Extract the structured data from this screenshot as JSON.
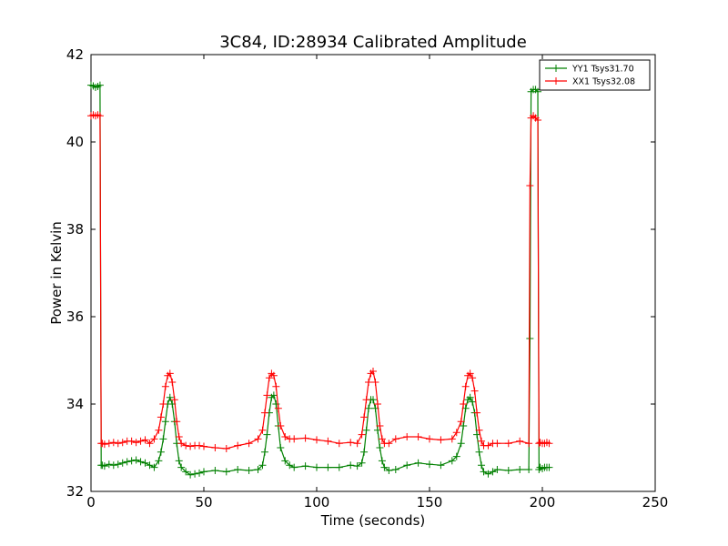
{
  "chart_data": {
    "type": "line",
    "title": "3C84, ID:28934 Calibrated Amplitude",
    "xlabel": "Time (seconds)",
    "ylabel": "Power in Kelvin",
    "xlim": [
      0,
      250
    ],
    "ylim": [
      32,
      42
    ],
    "xticks": [
      0,
      50,
      100,
      150,
      200,
      250
    ],
    "yticks": [
      32,
      34,
      36,
      38,
      40,
      42
    ],
    "grid": false,
    "legend_position": "top-right",
    "marker": "+",
    "series": [
      {
        "name": "YY1 Tsys31.70",
        "color": "#008000",
        "x": [
          0,
          1,
          2,
          3,
          4,
          4.5,
          5,
          6,
          8,
          10,
          12,
          14,
          16,
          18,
          20,
          22,
          24,
          26,
          28,
          30,
          31,
          32,
          33,
          34,
          35,
          36,
          37,
          38,
          39,
          40,
          42,
          44,
          46,
          48,
          50,
          55,
          60,
          65,
          70,
          74,
          76,
          77,
          78,
          79,
          80,
          81,
          82,
          83,
          84,
          86,
          88,
          90,
          95,
          100,
          105,
          110,
          115,
          118,
          120,
          121,
          122,
          123,
          124,
          125,
          126,
          127,
          128,
          129,
          130,
          132,
          135,
          140,
          145,
          150,
          155,
          160,
          162,
          164,
          165,
          166,
          167,
          168,
          169,
          170,
          171,
          172,
          173,
          174,
          176,
          178,
          180,
          185,
          190,
          194,
          194.5,
          195,
          196,
          197,
          198,
          198.5,
          199,
          200,
          201,
          202,
          203
        ],
        "y": [
          41.3,
          41.28,
          41.25,
          41.27,
          41.3,
          32.6,
          32.6,
          32.58,
          32.62,
          32.6,
          32.62,
          32.65,
          32.68,
          32.7,
          32.72,
          32.68,
          32.65,
          32.6,
          32.55,
          32.7,
          32.9,
          33.2,
          33.6,
          34.0,
          34.15,
          34.0,
          33.6,
          33.1,
          32.7,
          32.55,
          32.45,
          32.38,
          32.4,
          32.42,
          32.45,
          32.48,
          32.45,
          32.5,
          32.48,
          32.5,
          32.6,
          32.9,
          33.3,
          33.8,
          34.15,
          34.2,
          34.0,
          33.5,
          33.0,
          32.7,
          32.6,
          32.55,
          32.58,
          32.55,
          32.55,
          32.55,
          32.6,
          32.58,
          32.65,
          32.9,
          33.4,
          33.9,
          34.1,
          34.1,
          33.9,
          33.4,
          33.0,
          32.7,
          32.55,
          32.48,
          32.5,
          32.6,
          32.65,
          32.62,
          32.6,
          32.7,
          32.8,
          33.1,
          33.5,
          33.9,
          34.1,
          34.15,
          34.05,
          33.8,
          33.3,
          32.9,
          32.6,
          32.45,
          32.4,
          32.45,
          32.5,
          32.48,
          32.5,
          32.5,
          35.5,
          41.15,
          41.2,
          41.2,
          41.15,
          32.5,
          32.55,
          32.52,
          32.55,
          32.55,
          32.55
        ],
        "y_pixel_note": ""
      },
      {
        "name": "XX1 Tsys32.08",
        "color": "#ff0000",
        "x": [
          0,
          1,
          2,
          3,
          4,
          4.5,
          5,
          6,
          8,
          10,
          12,
          14,
          16,
          18,
          20,
          22,
          24,
          26,
          28,
          30,
          31,
          32,
          33,
          34,
          35,
          36,
          37,
          38,
          39,
          40,
          42,
          44,
          46,
          48,
          50,
          55,
          60,
          65,
          70,
          74,
          76,
          77,
          78,
          79,
          80,
          81,
          82,
          83,
          84,
          86,
          88,
          90,
          95,
          100,
          105,
          110,
          115,
          118,
          120,
          121,
          122,
          123,
          124,
          125,
          126,
          127,
          128,
          129,
          130,
          132,
          135,
          140,
          145,
          150,
          155,
          160,
          162,
          164,
          165,
          166,
          167,
          168,
          169,
          170,
          171,
          172,
          173,
          174,
          176,
          178,
          180,
          185,
          190,
          194,
          194.5,
          195,
          196,
          197,
          198,
          198.5,
          199,
          200,
          201,
          202,
          203
        ],
        "y": [
          40.6,
          40.62,
          40.6,
          40.62,
          40.6,
          33.1,
          33.1,
          33.08,
          33.1,
          33.12,
          33.1,
          33.12,
          33.15,
          33.15,
          33.12,
          33.15,
          33.18,
          33.1,
          33.2,
          33.4,
          33.7,
          34.0,
          34.4,
          34.65,
          34.7,
          34.5,
          34.1,
          33.6,
          33.25,
          33.1,
          33.05,
          33.03,
          33.05,
          33.05,
          33.03,
          33.0,
          32.98,
          33.05,
          33.1,
          33.2,
          33.4,
          33.8,
          34.2,
          34.6,
          34.7,
          34.65,
          34.4,
          33.9,
          33.5,
          33.25,
          33.2,
          33.2,
          33.22,
          33.18,
          33.15,
          33.1,
          33.12,
          33.1,
          33.3,
          33.7,
          34.1,
          34.5,
          34.7,
          34.75,
          34.5,
          34.0,
          33.5,
          33.2,
          33.1,
          33.1,
          33.2,
          33.25,
          33.25,
          33.2,
          33.18,
          33.2,
          33.35,
          33.6,
          34.0,
          34.4,
          34.65,
          34.7,
          34.6,
          34.3,
          33.8,
          33.4,
          33.15,
          33.05,
          33.05,
          33.1,
          33.1,
          33.1,
          33.15,
          33.1,
          39.0,
          40.55,
          40.6,
          40.55,
          40.5,
          33.1,
          33.12,
          33.1,
          33.1,
          33.12,
          33.1
        ]
      }
    ]
  }
}
